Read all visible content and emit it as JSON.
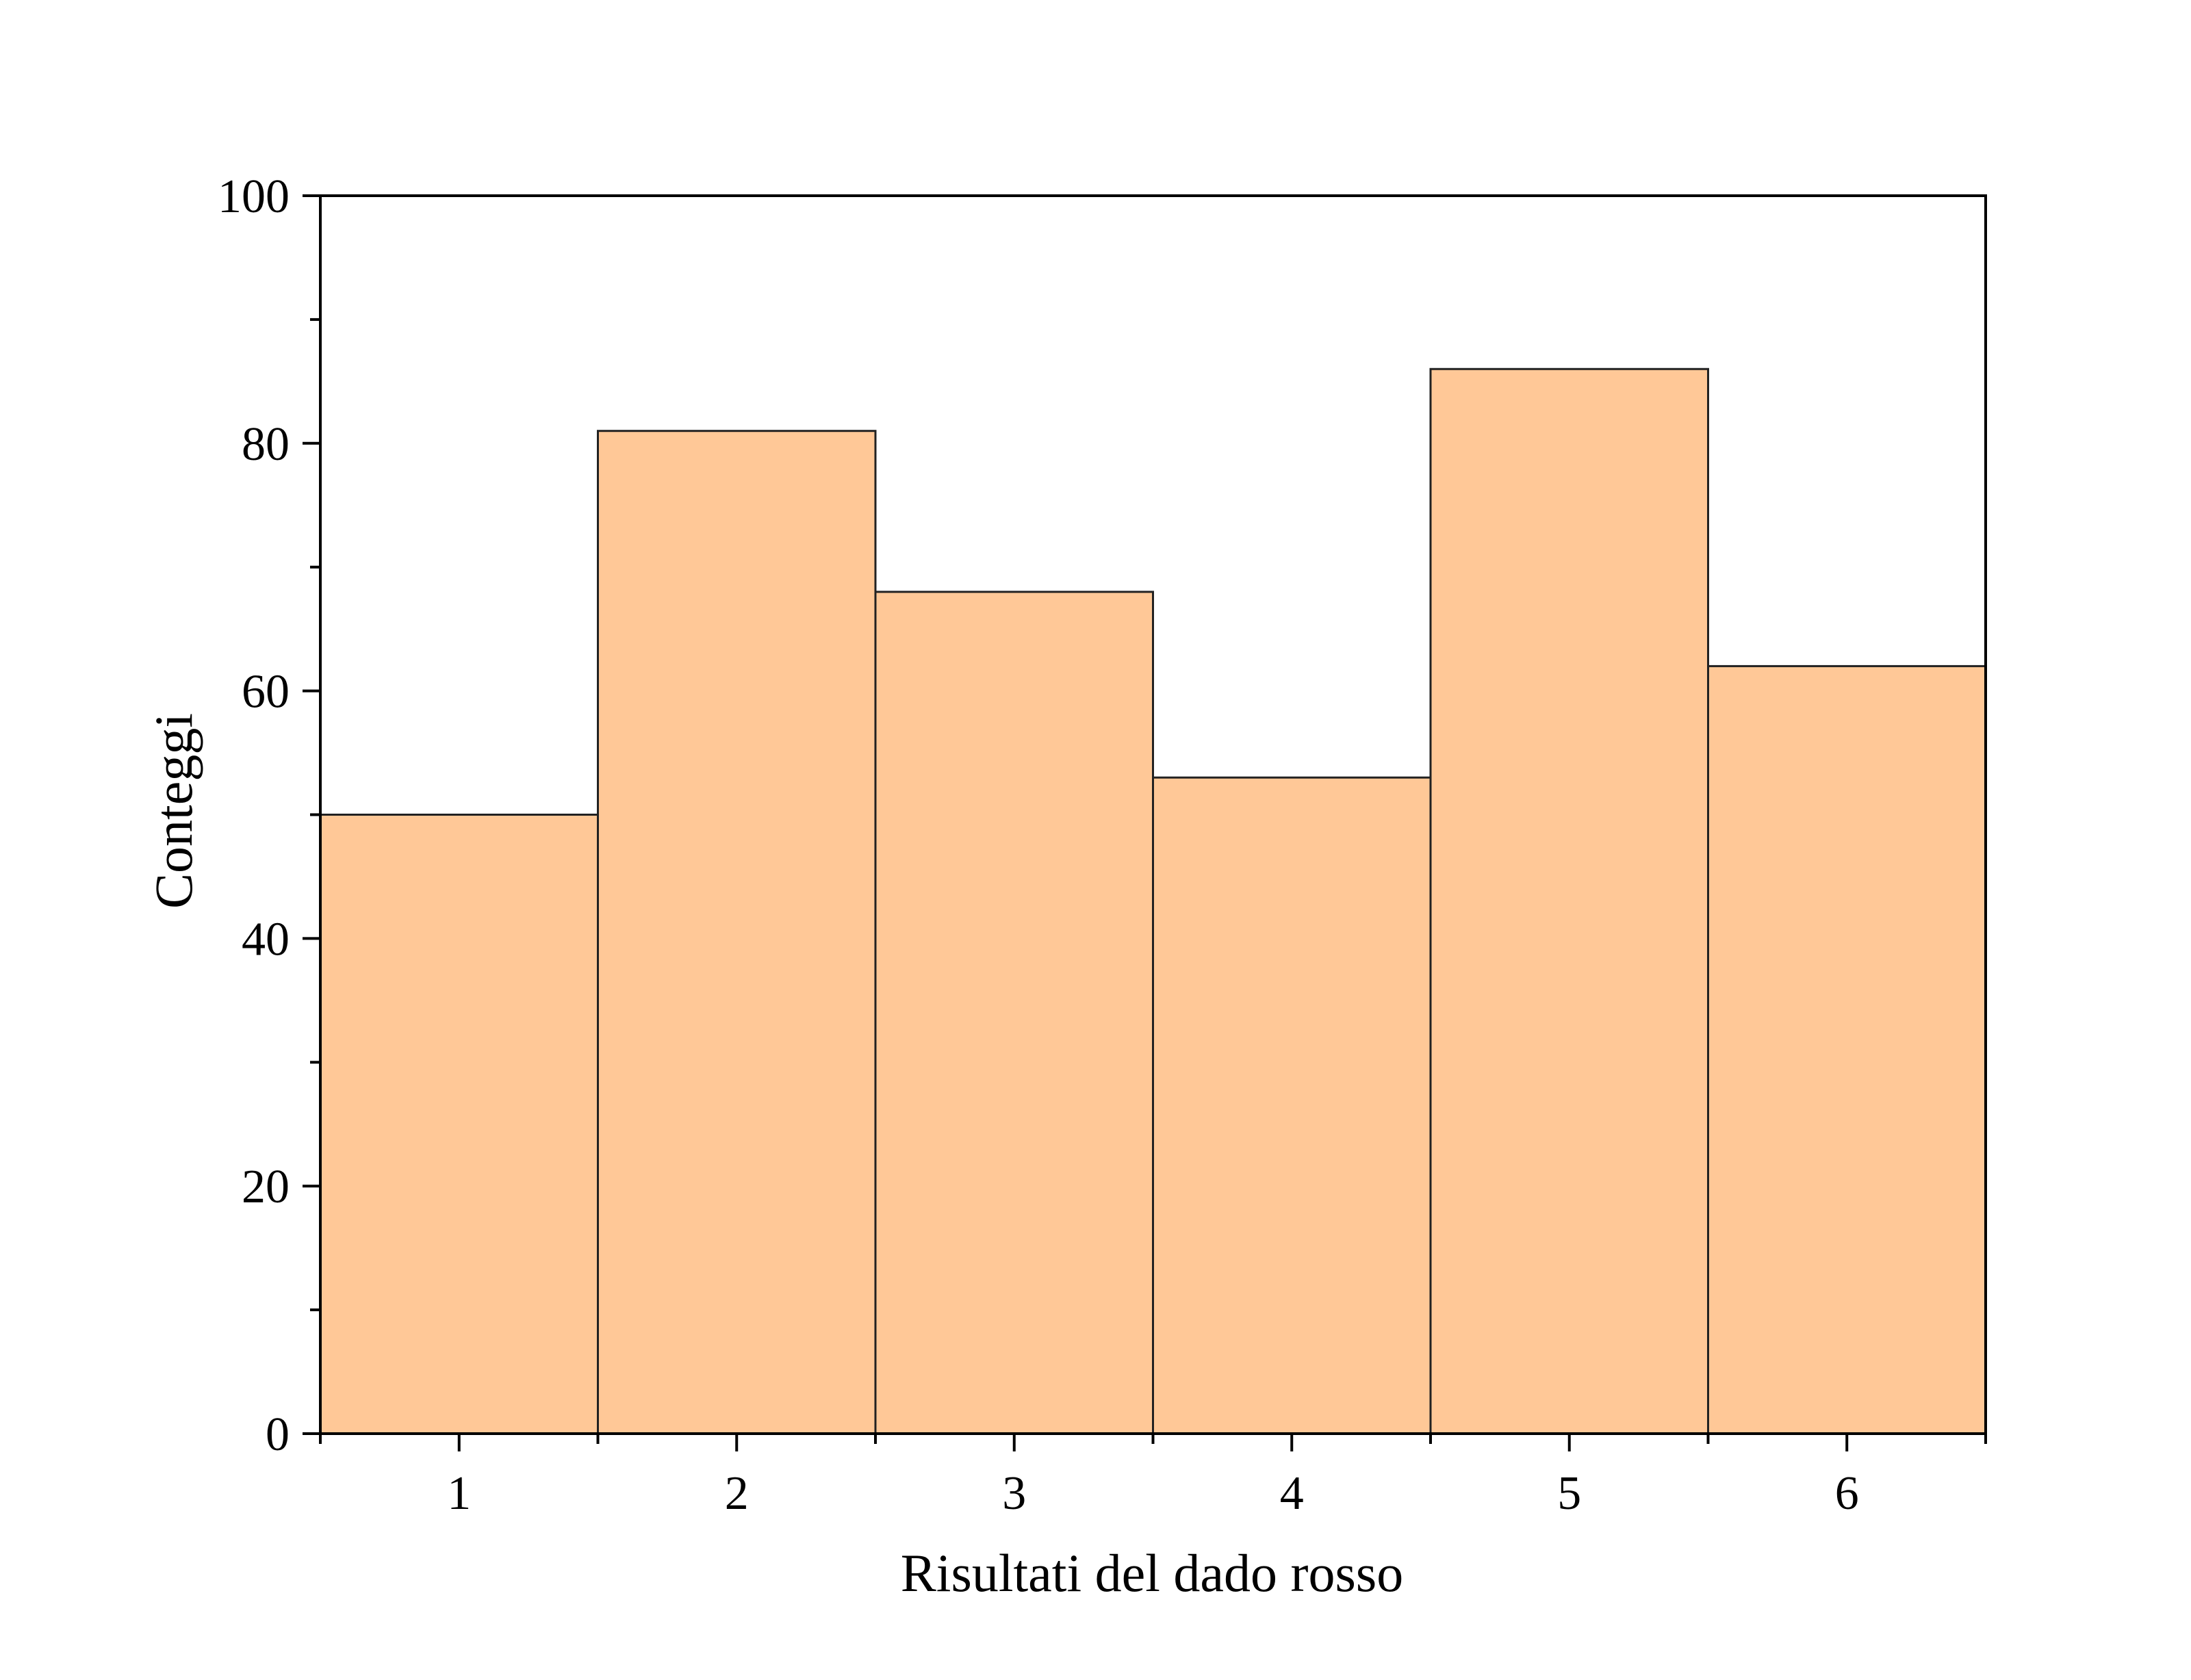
{
  "chart_data": {
    "type": "bar",
    "categories": [
      "1",
      "2",
      "3",
      "4",
      "5",
      "6"
    ],
    "values": [
      50,
      81,
      68,
      53,
      86,
      62
    ],
    "xlabel": "Risultati del dado rosso",
    "ylabel": "Conteggi",
    "ylim": [
      0,
      100
    ],
    "xlim": [
      0.5,
      6.5
    ],
    "yticks": [
      "0",
      "20",
      "40",
      "60",
      "80",
      "100"
    ],
    "grid": false,
    "legend": "none",
    "colors": {
      "bar_fill": "#FFC897",
      "bar_stroke": "#222222",
      "axis": "#000000"
    }
  }
}
